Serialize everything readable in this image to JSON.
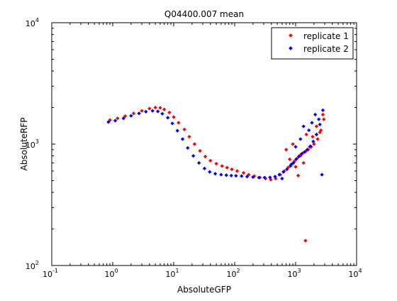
{
  "chart_data": {
    "type": "scatter",
    "title": "Q04400.007 mean",
    "xlabel": "AbsoluteGFP",
    "ylabel": "AbsoluteRFP",
    "xscale": "log",
    "yscale": "log",
    "xlim": [
      0.1,
      10000
    ],
    "ylim": [
      100,
      10000
    ],
    "x_tick_labels": [
      {
        "base": "10",
        "exp": "-1"
      },
      {
        "base": "10",
        "exp": "0"
      },
      {
        "base": "10",
        "exp": "1"
      },
      {
        "base": "10",
        "exp": "2"
      },
      {
        "base": "10",
        "exp": "3"
      },
      {
        "base": "10",
        "exp": "4"
      }
    ],
    "y_tick_labels": [
      {
        "base": "10",
        "exp": "2"
      },
      {
        "base": "10",
        "exp": "3"
      },
      {
        "base": "10",
        "exp": "4"
      }
    ],
    "legend_position": "top-right",
    "grid": false,
    "series": [
      {
        "name": "replicate 1",
        "color": "#ff0000",
        "marker": "diamond",
        "x": [
          0.9,
          1.2,
          1.6,
          2.2,
          3,
          4,
          5,
          6,
          7,
          8.5,
          10,
          12,
          15,
          18,
          22,
          27,
          33,
          40,
          50,
          62,
          75,
          90,
          110,
          140,
          170,
          210,
          260,
          320,
          390,
          470,
          560,
          650,
          750,
          850,
          950,
          1050,
          1150,
          1300,
          1450,
          1600,
          1800,
          2000,
          2300,
          2600,
          2900,
          700,
          800,
          900,
          1000,
          1100,
          1200,
          1350,
          1500,
          1700,
          1900,
          2200,
          2500,
          1450,
          2800
        ],
        "y": [
          1580,
          1630,
          1700,
          1790,
          1880,
          1960,
          2000,
          1990,
          1930,
          1820,
          1670,
          1500,
          1320,
          1150,
          1000,
          880,
          790,
          730,
          690,
          660,
          640,
          620,
          600,
          580,
          560,
          545,
          530,
          520,
          510,
          520,
          560,
          600,
          640,
          680,
          720,
          760,
          800,
          840,
          870,
          900,
          950,
          1000,
          1100,
          1300,
          1600,
          900,
          750,
          1000,
          650,
          550,
          800,
          700,
          1200,
          950,
          1150,
          1400,
          1250,
          160,
          1750
        ]
      },
      {
        "name": "replicate 2",
        "color": "#0000ff",
        "marker": "diamond",
        "x": [
          0.85,
          1.1,
          1.5,
          2,
          2.7,
          3.5,
          4.5,
          5.5,
          6.5,
          8,
          9.5,
          11.5,
          14,
          17,
          21,
          26,
          32,
          39,
          48,
          60,
          73,
          88,
          105,
          130,
          160,
          200,
          250,
          310,
          380,
          460,
          540,
          630,
          720,
          820,
          920,
          1020,
          1130,
          1250,
          1400,
          1550,
          1750,
          1950,
          2200,
          2500,
          2800,
          600,
          850,
          1000,
          1200,
          1350,
          1650,
          1850,
          2100,
          2400,
          2700
        ],
        "y": [
          1520,
          1560,
          1630,
          1710,
          1790,
          1850,
          1880,
          1860,
          1780,
          1650,
          1480,
          1290,
          1100,
          930,
          800,
          700,
          630,
          590,
          570,
          560,
          555,
          550,
          548,
          545,
          540,
          535,
          530,
          530,
          532,
          540,
          560,
          590,
          620,
          660,
          700,
          750,
          790,
          830,
          860,
          900,
          960,
          1050,
          1200,
          1450,
          1900,
          520,
          680,
          950,
          1100,
          1400,
          1300,
          1500,
          1750,
          1600,
          560
        ]
      }
    ]
  }
}
